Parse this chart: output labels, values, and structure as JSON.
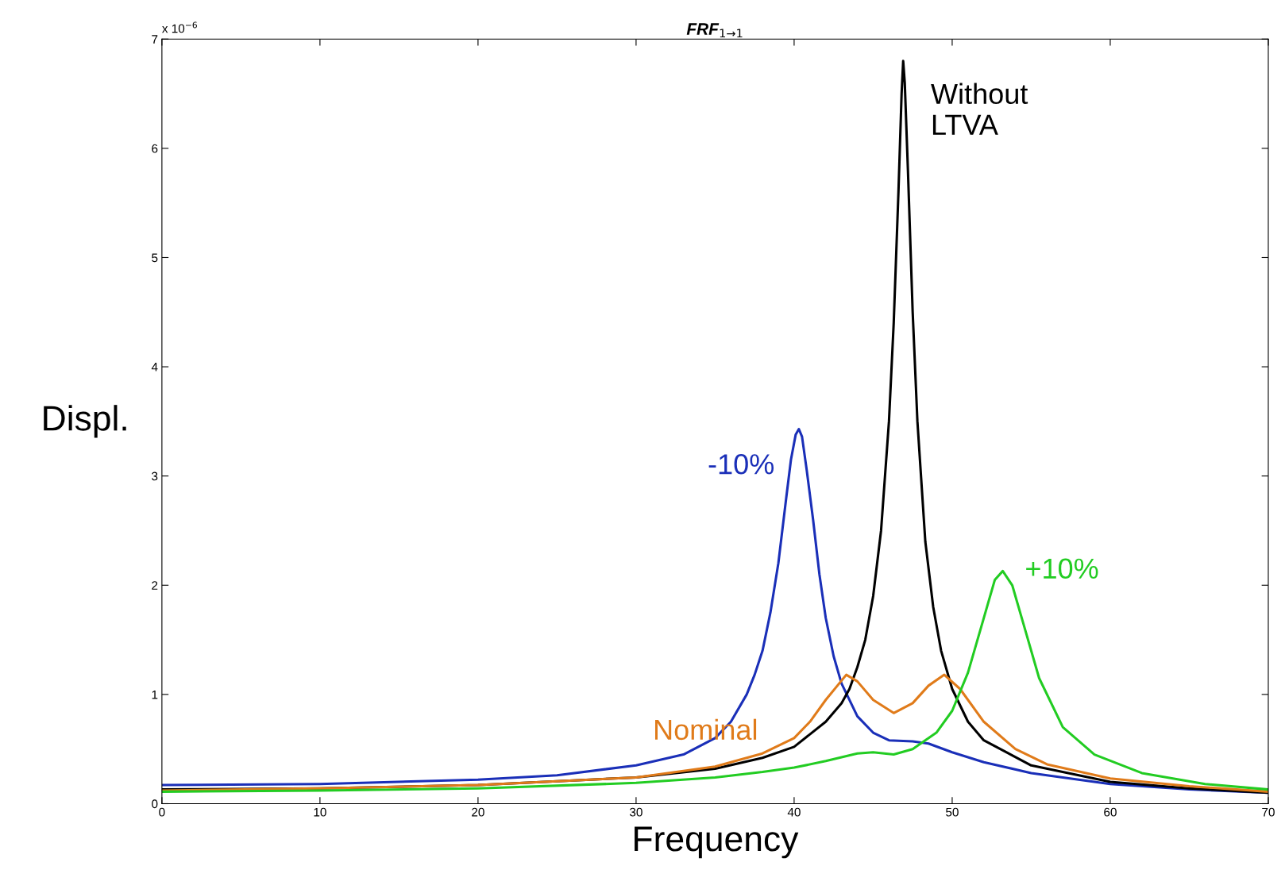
{
  "chart_data": {
    "type": "line",
    "title": "FRF$_{1→1}$",
    "xlabel": "Frequency",
    "ylabel": "Displ.",
    "annotations": [
      "x 10$^{−6}$"
    ],
    "xlim": [
      0,
      70
    ],
    "xticks": [
      0,
      10,
      20,
      30,
      40,
      50,
      60,
      70
    ],
    "ylim": [
      0,
      7
    ],
    "yticks": [
      0,
      1,
      2,
      3,
      4,
      5,
      6,
      7
    ],
    "grid": false,
    "legend": false,
    "marker": "none",
    "line_style": "solid",
    "series": [
      {
        "name": "-10%",
        "color": "#1a2fb8",
        "x": [
          0,
          10,
          20,
          25,
          30,
          33,
          35,
          36,
          37,
          37.5,
          38,
          38.5,
          39,
          39.5,
          39.8,
          40.1,
          40.3,
          40.5,
          40.8,
          41.2,
          41.6,
          42,
          42.5,
          43,
          44,
          45,
          46,
          47.5,
          48.5,
          50,
          52,
          55,
          60,
          65,
          70
        ],
        "values": [
          0.17,
          0.18,
          0.22,
          0.26,
          0.35,
          0.45,
          0.6,
          0.75,
          1.0,
          1.18,
          1.4,
          1.75,
          2.2,
          2.8,
          3.15,
          3.38,
          3.43,
          3.36,
          3.05,
          2.6,
          2.1,
          1.7,
          1.35,
          1.1,
          0.8,
          0.65,
          0.58,
          0.57,
          0.55,
          0.47,
          0.38,
          0.28,
          0.18,
          0.13,
          0.1
        ]
      },
      {
        "name": "Without\nLTVA",
        "color": "#000000",
        "x": [
          0,
          10,
          20,
          30,
          35,
          38,
          40,
          42,
          43,
          43.5,
          44,
          44.5,
          45,
          45.5,
          46,
          46.3,
          46.6,
          46.8,
          46.9,
          47.0,
          47.2,
          47.5,
          47.8,
          48.3,
          48.8,
          49.3,
          50,
          51,
          52,
          55,
          60,
          65,
          70
        ],
        "values": [
          0.13,
          0.14,
          0.17,
          0.24,
          0.32,
          0.42,
          0.52,
          0.75,
          0.92,
          1.05,
          1.25,
          1.5,
          1.9,
          2.5,
          3.5,
          4.4,
          5.6,
          6.5,
          6.8,
          6.6,
          5.8,
          4.5,
          3.5,
          2.4,
          1.8,
          1.4,
          1.05,
          0.75,
          0.58,
          0.35,
          0.2,
          0.14,
          0.1
        ]
      },
      {
        "name": "Nominal",
        "color": "#e07b1a",
        "x": [
          0,
          10,
          20,
          30,
          35,
          38,
          40,
          41,
          42,
          43.3,
          44,
          45,
          46.3,
          47.5,
          48.5,
          49.5,
          50.5,
          52,
          54,
          56,
          60,
          65,
          70
        ],
        "values": [
          0.12,
          0.14,
          0.17,
          0.24,
          0.34,
          0.46,
          0.6,
          0.75,
          0.95,
          1.18,
          1.12,
          0.95,
          0.83,
          0.92,
          1.08,
          1.18,
          1.05,
          0.75,
          0.5,
          0.36,
          0.23,
          0.16,
          0.11
        ]
      },
      {
        "name": "+10%",
        "color": "#22cc22",
        "x": [
          0,
          10,
          20,
          30,
          35,
          38,
          40,
          42,
          44,
          45,
          46.3,
          47.5,
          49,
          50,
          51,
          52,
          52.7,
          53.2,
          53.8,
          54.5,
          55.5,
          57,
          59,
          62,
          66,
          70
        ],
        "values": [
          0.11,
          0.12,
          0.14,
          0.19,
          0.24,
          0.29,
          0.33,
          0.39,
          0.46,
          0.47,
          0.45,
          0.5,
          0.65,
          0.85,
          1.2,
          1.7,
          2.05,
          2.13,
          2.0,
          1.65,
          1.15,
          0.7,
          0.45,
          0.28,
          0.18,
          0.13
        ]
      }
    ]
  }
}
